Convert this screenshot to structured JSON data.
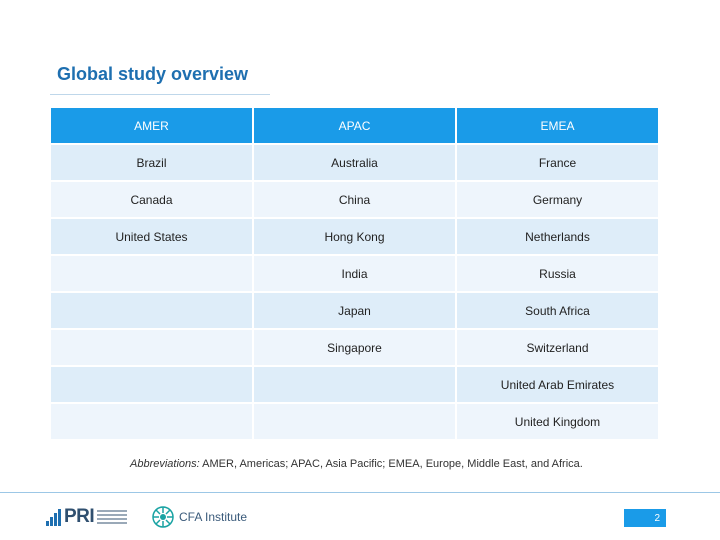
{
  "title": "Global study overview",
  "table": {
    "headers": [
      "AMER",
      "APAC",
      "EMEA"
    ],
    "rows": [
      [
        "Brazil",
        "Australia",
        "France"
      ],
      [
        "Canada",
        "China",
        "Germany"
      ],
      [
        "United States",
        "Hong Kong",
        "Netherlands"
      ],
      [
        "",
        "India",
        "Russia"
      ],
      [
        "",
        "Japan",
        "South Africa"
      ],
      [
        "",
        "Singapore",
        "Switzerland"
      ],
      [
        "",
        "",
        "United Arab Emirates"
      ],
      [
        "",
        "",
        "United Kingdom"
      ]
    ]
  },
  "footnote": {
    "label": "Abbreviations:",
    "text": " AMER, Americas; APAC, Asia Pacific; EMEA, Europe, Middle East, and Africa."
  },
  "footer": {
    "pri_logo_text": "PRI",
    "cfa_logo_text": "CFA Institute",
    "page_number": "2"
  },
  "colors": {
    "title": "#1e6fb0",
    "header_bg": "#1a9be8",
    "row_bg": "#deedf9",
    "row_alt_bg": "#eef5fc"
  }
}
